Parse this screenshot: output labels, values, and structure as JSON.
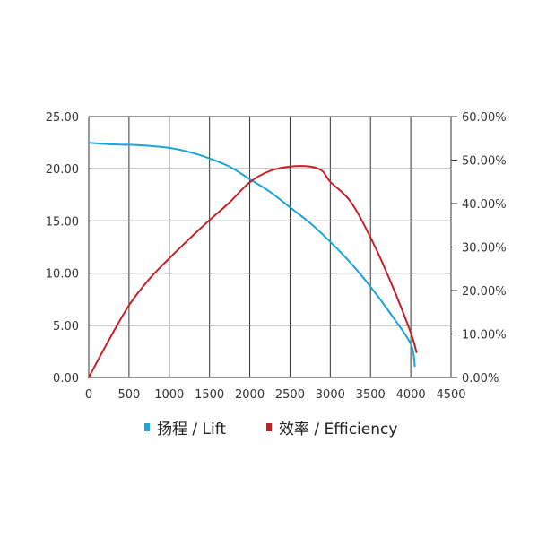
{
  "chart_data": {
    "type": "line",
    "grid": true,
    "legend_position": "bottom-center",
    "x": {
      "range": [
        0,
        4500
      ],
      "ticks": [
        0,
        500,
        1000,
        1500,
        2000,
        2500,
        3000,
        3500,
        4000,
        4500
      ],
      "tick_labels": [
        "0",
        "500",
        "1000",
        "1500",
        "2000",
        "2500",
        "3000",
        "3500",
        "4000",
        "4500"
      ]
    },
    "y_left": {
      "range": [
        0,
        25
      ],
      "ticks": [
        0,
        5,
        10,
        15,
        20,
        25
      ],
      "tick_labels": [
        "0.00",
        "5.00",
        "10.00",
        "15.00",
        "20.00",
        "25.00"
      ]
    },
    "y_right": {
      "range": [
        0,
        60
      ],
      "ticks": [
        0,
        10,
        20,
        30,
        40,
        50,
        60
      ],
      "tick_labels": [
        "0.00%",
        "10.00%",
        "20.00%",
        "30.00%",
        "40.00%",
        "50.00%",
        "60.00%"
      ]
    },
    "series": [
      {
        "name": "扬程 / Lift",
        "axis": "left",
        "color": "#1BA3DC",
        "points": [
          [
            0,
            22.5
          ],
          [
            250,
            22.35
          ],
          [
            500,
            22.3
          ],
          [
            750,
            22.2
          ],
          [
            1000,
            22.0
          ],
          [
            1250,
            21.6
          ],
          [
            1500,
            21.0
          ],
          [
            1750,
            20.2
          ],
          [
            2000,
            19.0
          ],
          [
            2250,
            17.8
          ],
          [
            2500,
            16.3
          ],
          [
            2750,
            14.8
          ],
          [
            3000,
            13.0
          ],
          [
            3250,
            11.0
          ],
          [
            3500,
            8.7
          ],
          [
            3750,
            6.1
          ],
          [
            4000,
            3.2
          ],
          [
            4050,
            1.1
          ]
        ]
      },
      {
        "name": "效率 / Efficiency",
        "axis": "right",
        "color": "#C62026",
        "points": [
          [
            0,
            0
          ],
          [
            250,
            8.6
          ],
          [
            500,
            16.6
          ],
          [
            750,
            22.6
          ],
          [
            1000,
            27.4
          ],
          [
            1250,
            31.9
          ],
          [
            1500,
            36.2
          ],
          [
            1750,
            40.3
          ],
          [
            2000,
            44.9
          ],
          [
            2250,
            47.5
          ],
          [
            2500,
            48.5
          ],
          [
            2750,
            48.5
          ],
          [
            2900,
            47.5
          ],
          [
            3000,
            45.0
          ],
          [
            3250,
            40.5
          ],
          [
            3500,
            32.2
          ],
          [
            3750,
            22.0
          ],
          [
            4000,
            10.3
          ],
          [
            4070,
            5.8
          ]
        ]
      }
    ]
  }
}
